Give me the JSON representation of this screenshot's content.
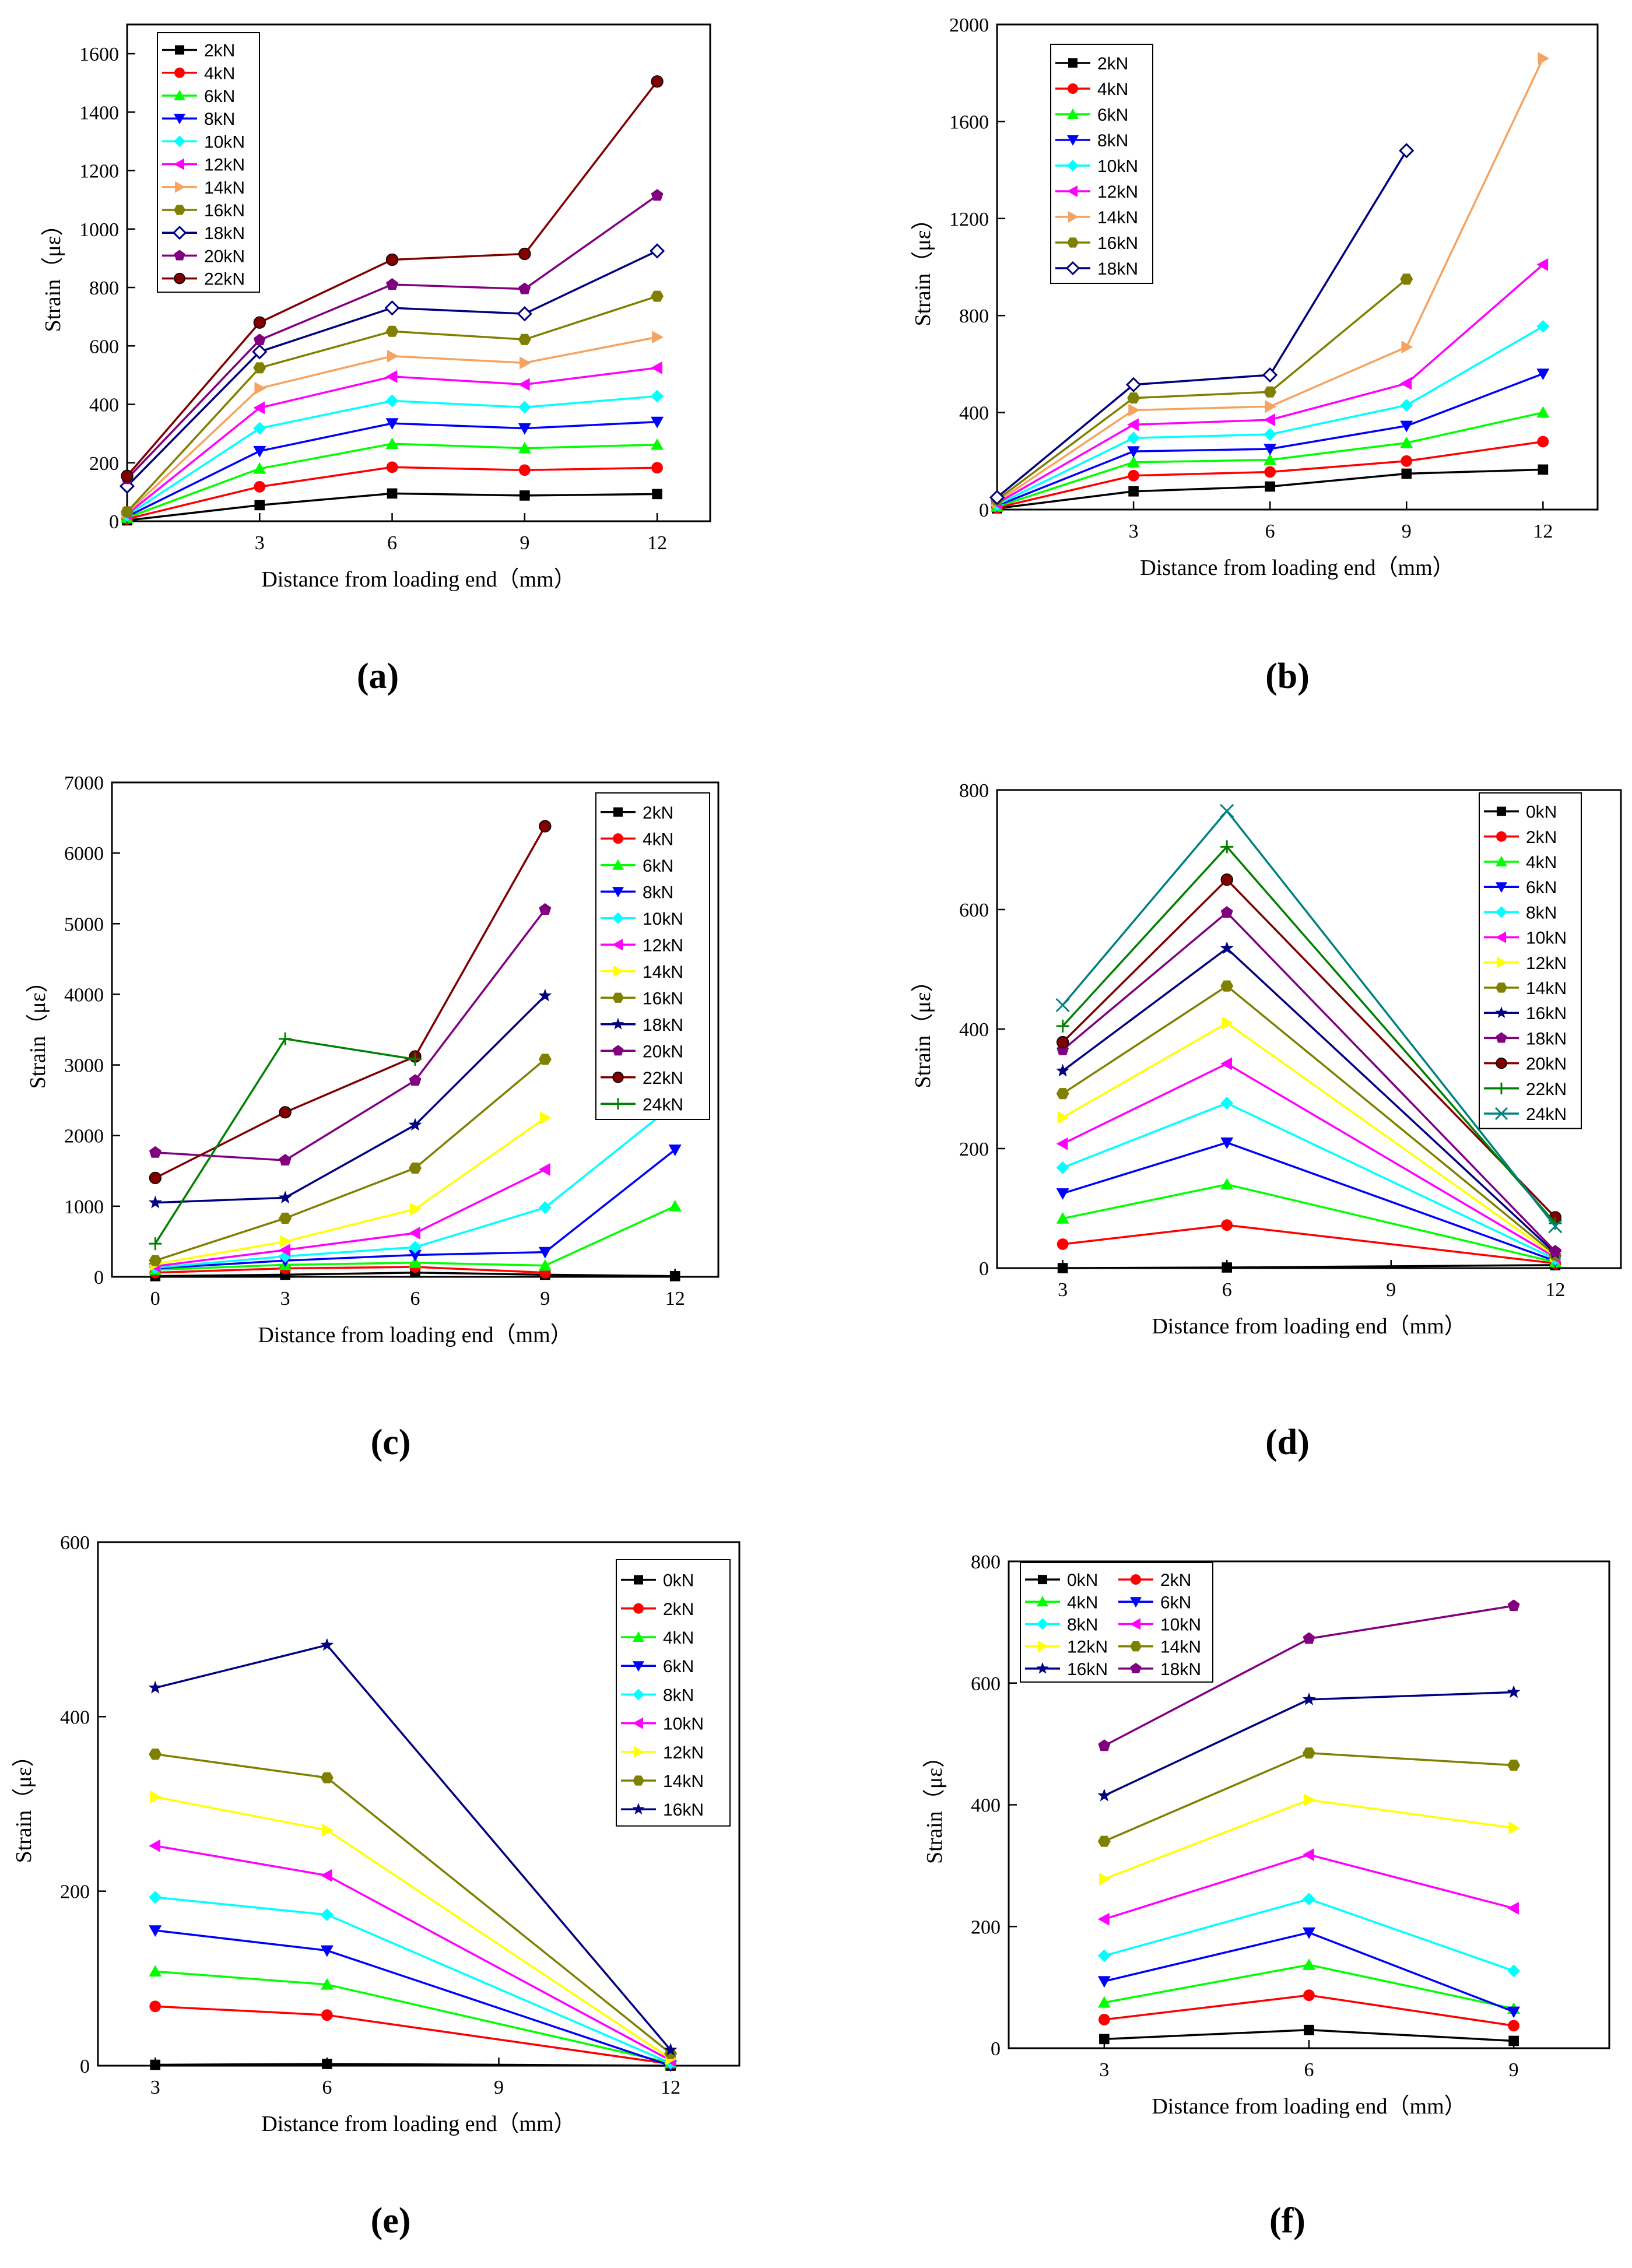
{
  "figure": {
    "panel_labels": [
      "(a)",
      "(b)",
      "(c)",
      "(d)",
      "(e)",
      "(f)"
    ]
  },
  "chart_data": [
    {
      "panel": "(a)",
      "type": "line",
      "xlabel": "Distance from loading end（mm）",
      "ylabel": "Strain（με）",
      "xlim": [
        0,
        13.2
      ],
      "ylim": [
        0,
        1700
      ],
      "x_ticks": [
        3,
        6,
        9,
        12
      ],
      "y_ticks": [
        0,
        200,
        400,
        600,
        800,
        1000,
        1200,
        1400,
        1600
      ],
      "x": [
        0,
        3,
        6,
        9,
        12
      ],
      "series": [
        {
          "name": "2kN",
          "values": [
            3,
            55,
            95,
            88,
            93
          ],
          "color": "#000000",
          "marker": "square"
        },
        {
          "name": "4kN",
          "values": [
            8,
            118,
            185,
            175,
            183
          ],
          "color": "#ff0000",
          "marker": "circle"
        },
        {
          "name": "6kN",
          "values": [
            12,
            180,
            265,
            250,
            262
          ],
          "color": "#00ff00",
          "marker": "triangle-up"
        },
        {
          "name": "8kN",
          "values": [
            16,
            240,
            335,
            318,
            340
          ],
          "color": "#0000ff",
          "marker": "triangle-down"
        },
        {
          "name": "10kN",
          "values": [
            20,
            318,
            412,
            390,
            428
          ],
          "color": "#00ffff",
          "marker": "diamond"
        },
        {
          "name": "12kN",
          "values": [
            24,
            388,
            495,
            468,
            525
          ],
          "color": "#ff00ff",
          "marker": "triangle-left"
        },
        {
          "name": "14kN",
          "values": [
            28,
            455,
            565,
            542,
            630
          ],
          "color": "#f4a460",
          "marker": "triangle-right"
        },
        {
          "name": "16kN",
          "values": [
            32,
            525,
            650,
            622,
            770
          ],
          "color": "#808000",
          "marker": "hexagon"
        },
        {
          "name": "18kN",
          "values": [
            120,
            580,
            730,
            710,
            925
          ],
          "color": "#000080",
          "marker": "diamond-open"
        },
        {
          "name": "20kN",
          "values": [
            145,
            620,
            810,
            795,
            1115
          ],
          "color": "#800080",
          "marker": "pentagon"
        },
        {
          "name": "22kN",
          "values": [
            155,
            680,
            895,
            915,
            1505
          ],
          "color": "#800000",
          "marker": "circle-half"
        }
      ],
      "legend": "top-left"
    },
    {
      "panel": "(b)",
      "type": "line",
      "xlabel": "Distance from loading end（mm）",
      "ylabel": "Strain（με）",
      "xlim": [
        0,
        13.2
      ],
      "ylim": [
        0,
        2000
      ],
      "x_ticks": [
        3,
        6,
        9,
        12
      ],
      "y_ticks": [
        0,
        400,
        800,
        1200,
        1600,
        2000
      ],
      "x": [
        0,
        3,
        6,
        9,
        12
      ],
      "series": [
        {
          "name": "2kN",
          "values": [
            5,
            75,
            95,
            148,
            165
          ],
          "color": "#000000",
          "marker": "square"
        },
        {
          "name": "4kN",
          "values": [
            8,
            140,
            155,
            200,
            280
          ],
          "color": "#ff0000",
          "marker": "circle"
        },
        {
          "name": "6kN",
          "values": [
            12,
            195,
            205,
            275,
            400
          ],
          "color": "#00ff00",
          "marker": "triangle-up"
        },
        {
          "name": "8kN",
          "values": [
            16,
            240,
            250,
            345,
            560
          ],
          "color": "#0000ff",
          "marker": "triangle-down"
        },
        {
          "name": "10kN",
          "values": [
            20,
            295,
            310,
            430,
            755
          ],
          "color": "#00ffff",
          "marker": "diamond"
        },
        {
          "name": "12kN",
          "values": [
            26,
            350,
            370,
            520,
            1010
          ],
          "color": "#ff00ff",
          "marker": "triangle-left"
        },
        {
          "name": "14kN",
          "values": [
            32,
            410,
            425,
            670,
            1860
          ],
          "color": "#f4a460",
          "marker": "triangle-right"
        },
        {
          "name": "16kN",
          "values": [
            40,
            460,
            485,
            950,
            null
          ],
          "color": "#808000",
          "marker": "hexagon"
        },
        {
          "name": "18kN",
          "values": [
            50,
            515,
            555,
            1480,
            null
          ],
          "color": "#000080",
          "marker": "diamond-open"
        }
      ],
      "legend": "top-left"
    },
    {
      "panel": "(c)",
      "type": "line",
      "xlabel": "Distance from loading end（mm）",
      "ylabel": "Strain（με）",
      "xlim": [
        -1,
        13
      ],
      "ylim": [
        0,
        7000
      ],
      "x_ticks": [
        0,
        3,
        6,
        9,
        12
      ],
      "y_ticks": [
        0,
        1000,
        2000,
        3000,
        4000,
        5000,
        6000,
        7000
      ],
      "x": [
        0,
        3,
        6,
        9,
        12
      ],
      "series": [
        {
          "name": "2kN",
          "values": [
            10,
            30,
            60,
            30,
            10
          ],
          "color": "#000000",
          "marker": "square"
        },
        {
          "name": "4kN",
          "values": [
            60,
            120,
            140,
            60,
            null
          ],
          "color": "#ff0000",
          "marker": "circle"
        },
        {
          "name": "6kN",
          "values": [
            100,
            170,
            200,
            160,
            1000
          ],
          "color": "#00ff00",
          "marker": "triangle-up"
        },
        {
          "name": "8kN",
          "values": [
            120,
            230,
            310,
            350,
            1800
          ],
          "color": "#0000ff",
          "marker": "triangle-down"
        },
        {
          "name": "10kN",
          "values": [
            130,
            290,
            420,
            980,
            2450
          ],
          "color": "#00ffff",
          "marker": "diamond"
        },
        {
          "name": "12kN",
          "values": [
            150,
            380,
            620,
            1520,
            null
          ],
          "color": "#ff00ff",
          "marker": "triangle-left"
        },
        {
          "name": "14kN",
          "values": [
            180,
            500,
            960,
            2250,
            null
          ],
          "color": "#ffff00",
          "marker": "triangle-right"
        },
        {
          "name": "16kN",
          "values": [
            230,
            830,
            1540,
            3080,
            null
          ],
          "color": "#808000",
          "marker": "hexagon"
        },
        {
          "name": "18kN",
          "values": [
            1050,
            1120,
            2150,
            3980,
            null
          ],
          "color": "#000080",
          "marker": "star"
        },
        {
          "name": "20kN",
          "values": [
            1760,
            1650,
            2780,
            5200,
            null
          ],
          "color": "#800080",
          "marker": "pentagon"
        },
        {
          "name": "22kN",
          "values": [
            1400,
            2330,
            3120,
            6380,
            null
          ],
          "color": "#800000",
          "marker": "circle-half"
        },
        {
          "name": "24kN",
          "values": [
            470,
            3370,
            3080,
            null,
            null
          ],
          "color": "#008000",
          "marker": "plus"
        }
      ],
      "legend": "top-right"
    },
    {
      "panel": "(d)",
      "type": "line",
      "xlabel": "Distance from loading end（mm）",
      "ylabel": "Strain（με）",
      "xlim": [
        1.8,
        13.2
      ],
      "ylim": [
        0,
        800
      ],
      "x_ticks": [
        3,
        6,
        9,
        12
      ],
      "y_ticks": [
        0,
        200,
        400,
        600,
        800
      ],
      "x": [
        3,
        6,
        12
      ],
      "series": [
        {
          "name": "0kN",
          "values": [
            0,
            1,
            5
          ],
          "color": "#000000",
          "marker": "square"
        },
        {
          "name": "2kN",
          "values": [
            40,
            72,
            8
          ],
          "color": "#ff0000",
          "marker": "circle"
        },
        {
          "name": "4kN",
          "values": [
            83,
            140,
            10
          ],
          "color": "#00ff00",
          "marker": "triangle-up"
        },
        {
          "name": "6kN",
          "values": [
            125,
            210,
            12
          ],
          "color": "#0000ff",
          "marker": "triangle-down"
        },
        {
          "name": "8kN",
          "values": [
            168,
            276,
            15
          ],
          "color": "#00ffff",
          "marker": "diamond"
        },
        {
          "name": "10kN",
          "values": [
            208,
            342,
            18
          ],
          "color": "#ff00ff",
          "marker": "triangle-left"
        },
        {
          "name": "12kN",
          "values": [
            252,
            410,
            20
          ],
          "color": "#ffff00",
          "marker": "triangle-right"
        },
        {
          "name": "14kN",
          "values": [
            292,
            472,
            22
          ],
          "color": "#808000",
          "marker": "hexagon"
        },
        {
          "name": "16kN",
          "values": [
            330,
            535,
            25
          ],
          "color": "#000080",
          "marker": "star"
        },
        {
          "name": "18kN",
          "values": [
            365,
            595,
            28
          ],
          "color": "#800080",
          "marker": "pentagon"
        },
        {
          "name": "20kN",
          "values": [
            378,
            650,
            85
          ],
          "color": "#800000",
          "marker": "circle-half"
        },
        {
          "name": "22kN",
          "values": [
            405,
            705,
            75
          ],
          "color": "#008000",
          "marker": "plus"
        },
        {
          "name": "24kN",
          "values": [
            440,
            765,
            70
          ],
          "color": "#008080",
          "marker": "cross"
        }
      ],
      "legend": "top-right"
    },
    {
      "panel": "(e)",
      "type": "line",
      "xlabel": "Distance from loading end（mm）",
      "ylabel": "Strain（με）",
      "xlim": [
        2,
        13.2
      ],
      "ylim": [
        0,
        600
      ],
      "x_ticks": [
        3,
        6,
        9,
        12
      ],
      "y_ticks": [
        0,
        200,
        400,
        600
      ],
      "x": [
        3,
        6,
        12
      ],
      "series": [
        {
          "name": "0kN",
          "values": [
            1,
            2,
            0
          ],
          "color": "#000000",
          "marker": "square"
        },
        {
          "name": "2kN",
          "values": [
            68,
            58,
            2
          ],
          "color": "#ff0000",
          "marker": "circle"
        },
        {
          "name": "4kN",
          "values": [
            108,
            93,
            3
          ],
          "color": "#00ff00",
          "marker": "triangle-up"
        },
        {
          "name": "6kN",
          "values": [
            155,
            132,
            0
          ],
          "color": "#0000ff",
          "marker": "triangle-down"
        },
        {
          "name": "8kN",
          "values": [
            193,
            173,
            3
          ],
          "color": "#00ffff",
          "marker": "diamond"
        },
        {
          "name": "10kN",
          "values": [
            252,
            218,
            6
          ],
          "color": "#ff00ff",
          "marker": "triangle-left"
        },
        {
          "name": "12kN",
          "values": [
            308,
            270,
            8
          ],
          "color": "#ffff00",
          "marker": "triangle-right"
        },
        {
          "name": "14kN",
          "values": [
            357,
            330,
            14
          ],
          "color": "#808000",
          "marker": "hexagon"
        },
        {
          "name": "16kN",
          "values": [
            433,
            482,
            18
          ],
          "color": "#000080",
          "marker": "star"
        }
      ],
      "legend": "top-right"
    },
    {
      "panel": "(f)",
      "type": "line",
      "xlabel": "Distance from loading end（mm）",
      "ylabel": "Strain（με）",
      "xlim": [
        1.6,
        10.4
      ],
      "ylim": [
        0,
        800
      ],
      "x_ticks": [
        3,
        6,
        9
      ],
      "y_ticks": [
        0,
        200,
        400,
        600,
        800
      ],
      "x": [
        3,
        6,
        9
      ],
      "series": [
        {
          "name": "0kN",
          "values": [
            15,
            30,
            12
          ],
          "color": "#000000",
          "marker": "square"
        },
        {
          "name": "2kN",
          "values": [
            47,
            87,
            37
          ],
          "color": "#ff0000",
          "marker": "circle"
        },
        {
          "name": "4kN",
          "values": [
            75,
            137,
            65
          ],
          "color": "#00ff00",
          "marker": "triangle-up"
        },
        {
          "name": "6kN",
          "values": [
            110,
            190,
            60
          ],
          "color": "#0000ff",
          "marker": "triangle-down"
        },
        {
          "name": "8kN",
          "values": [
            152,
            245,
            127
          ],
          "color": "#00ffff",
          "marker": "diamond"
        },
        {
          "name": "10kN",
          "values": [
            212,
            318,
            230
          ],
          "color": "#ff00ff",
          "marker": "triangle-left"
        },
        {
          "name": "12kN",
          "values": [
            278,
            408,
            362
          ],
          "color": "#ffff00",
          "marker": "triangle-right"
        },
        {
          "name": "14kN",
          "values": [
            340,
            485,
            465
          ],
          "color": "#808000",
          "marker": "hexagon"
        },
        {
          "name": "16kN",
          "values": [
            415,
            573,
            585
          ],
          "color": "#000080",
          "marker": "star"
        },
        {
          "name": "18kN",
          "values": [
            497,
            673,
            727
          ],
          "color": "#800080",
          "marker": "pentagon"
        }
      ],
      "legend": "top-left-2col"
    }
  ]
}
